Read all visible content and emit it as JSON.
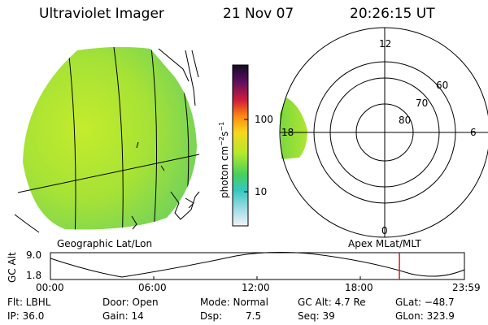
{
  "header": {
    "title": "Ultraviolet Imager",
    "date": "21 Nov 07",
    "time": "20:26:15 UT"
  },
  "colorbar": {
    "unit_label": "photon cm",
    "unit_exp1": "−2",
    "unit_mid": "s",
    "unit_exp2": "−1",
    "tick_100": "100",
    "tick_10": "10"
  },
  "polar": {
    "label_12": "12",
    "label_18": "18",
    "label_6": "6",
    "label_0": "0",
    "label_60": "60",
    "label_70": "70",
    "label_80": "80"
  },
  "labels": {
    "geographic": "Geographic Lat/Lon",
    "apex": "Apex MLat/MLT"
  },
  "timeline": {
    "axis_label": "GC Alt",
    "ymax": "9.0",
    "ymin": "1.8",
    "ticks": [
      "00:00",
      "06:00",
      "12:00",
      "18:00",
      "23:59"
    ],
    "marker_fraction": 0.843
  },
  "info": {
    "flt": "Flt: LBHL",
    "ip": "IP: 36.0",
    "door": "Door: Open",
    "gain": "Gain: 14",
    "mode": "Mode: Normal",
    "dsp_label": "Dsp:",
    "dsp_value": "7.5",
    "gcalt": "GC Alt: 4.7 Re",
    "seq": "Seq: 39",
    "glat": "GLat: −48.7",
    "glon": "GLon: 323.9"
  },
  "colors": {
    "aurora_green": "#a8e830",
    "polar_green": "#7cdc3c",
    "marker_red": "#d02020"
  }
}
